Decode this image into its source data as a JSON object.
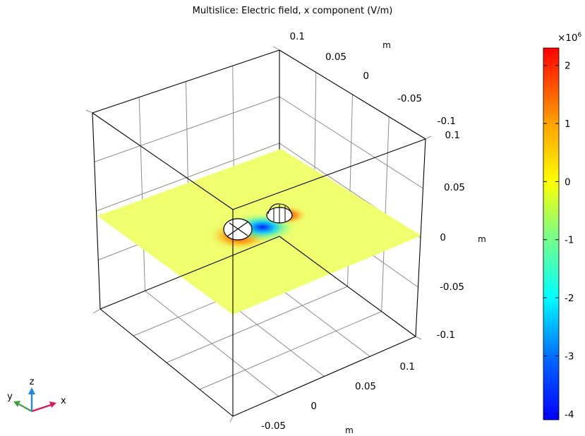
{
  "chart_data": {
    "type": "heatmap",
    "title": "Multislice: Electric field, x component (V/m)",
    "axes": {
      "x": {
        "unit": "m",
        "ticks": [
          "-0.05",
          "0",
          "0.05",
          "0.1"
        ]
      },
      "y": {
        "unit": "m",
        "ticks": [
          "0.1",
          "0.05",
          "0",
          "-0.05",
          "-0.1"
        ]
      },
      "z": {
        "unit": "m",
        "ticks": [
          "0.1",
          "0.05",
          "0",
          "-0.05",
          "-0.1"
        ]
      }
    },
    "colorbar": {
      "multiplier": "×10",
      "exponent": "6",
      "ticks": [
        "2",
        "1",
        "0",
        "-1",
        "-2",
        "-3",
        "-4"
      ],
      "range": [
        -4.1,
        2.3
      ],
      "colormap": "rainbow",
      "colors": [
        "#0000ff",
        "#00a0ff",
        "#00ffff",
        "#80ff80",
        "#ffff00",
        "#ffa000",
        "#ff0000"
      ]
    },
    "slice": "z = 0",
    "grid": true
  },
  "triad": {
    "x_label": "x",
    "y_label": "y",
    "z_label": "z"
  },
  "colors": {
    "slice_background": "#f0ff6e",
    "x_axis": "#d81b60",
    "y_axis": "#43a047",
    "z_axis": "#1e88e5"
  }
}
